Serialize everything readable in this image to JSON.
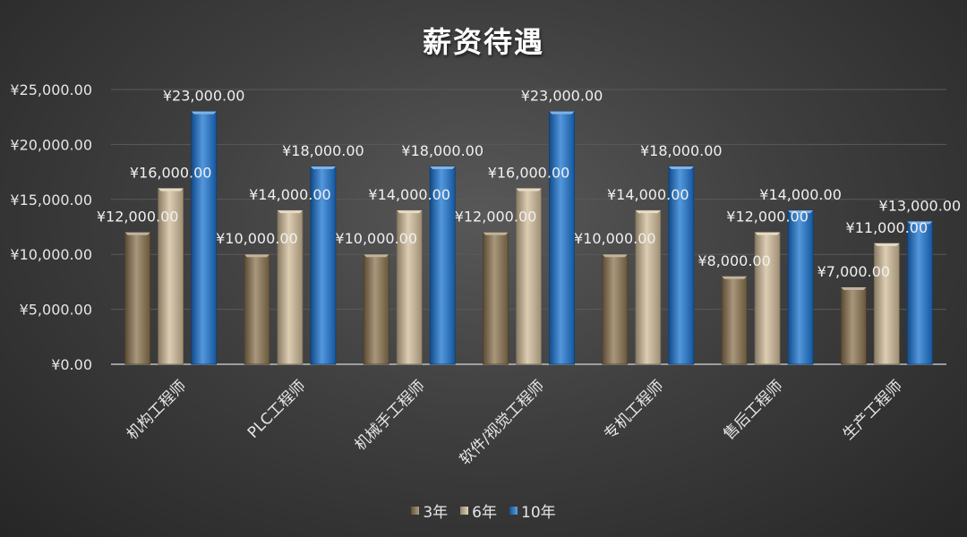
{
  "chart_data": {
    "type": "bar",
    "title": "薪资待遇",
    "categories": [
      "机构工程师",
      "PLC工程师",
      "机械手工程师",
      "软件/视觉工程师",
      "专机工程师",
      "售后工程师",
      "生产工程师"
    ],
    "series": [
      {
        "name": "3年",
        "values": [
          12000,
          10000,
          10000,
          12000,
          10000,
          8000,
          7000
        ],
        "labels": [
          "¥12,000.00",
          "¥10,000.00",
          "¥10,000.00",
          "¥12,000.00",
          "¥10,000.00",
          "¥8,000.00",
          "¥7,000.00"
        ],
        "color": "#8c7450"
      },
      {
        "name": "6年",
        "values": [
          16000,
          14000,
          14000,
          16000,
          14000,
          12000,
          11000
        ],
        "labels": [
          "¥16,000.00",
          "¥14,000.00",
          "¥14,000.00",
          "¥16,000.00",
          "¥14,000.00",
          "¥12,000.00",
          "¥11,000.00"
        ],
        "color": "#d2bd9a"
      },
      {
        "name": "10年",
        "values": [
          23000,
          18000,
          18000,
          23000,
          18000,
          14000,
          13000
        ],
        "labels": [
          "¥23,000.00",
          "¥18,000.00",
          "¥18,000.00",
          "¥23,000.00",
          "¥18,000.00",
          "¥14,000.00",
          "¥13,000.00"
        ],
        "color": "#1a74d2"
      }
    ],
    "ylim": [
      0,
      25000
    ],
    "yticks": [
      0,
      5000,
      10000,
      15000,
      20000,
      25000
    ],
    "ytick_labels": [
      "¥0.00",
      "¥5,000.00",
      "¥10,000.00",
      "¥15,000.00",
      "¥20,000.00",
      "¥25,000.00"
    ],
    "grid": true,
    "legend_position": "bottom"
  }
}
